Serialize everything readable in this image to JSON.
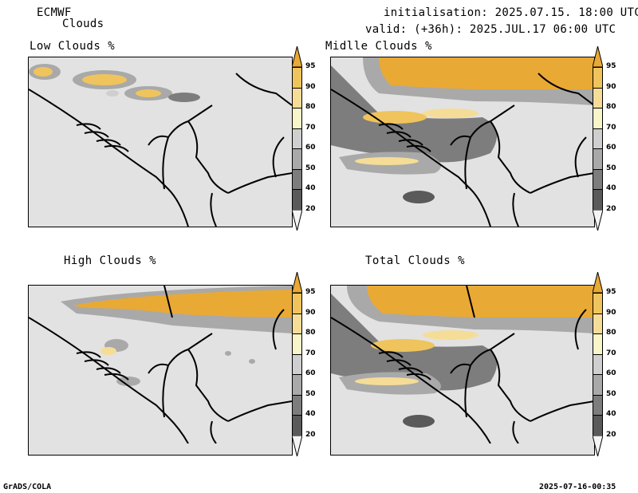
{
  "header": {
    "model": "ECMWF",
    "field": "Clouds",
    "init": "initialisation: 2025.07.15. 18:00 UTC",
    "valid": "valid: (+36h): 2025.JUL.17 06:00 UTC"
  },
  "panels": {
    "low": "Low Clouds %",
    "middle": "Midlle Clouds %",
    "high": "High Clouds %",
    "total": "Total Clouds %"
  },
  "colorbar": {
    "labels": [
      "95",
      "90",
      "80",
      "70",
      "60",
      "50",
      "40",
      "20"
    ],
    "colors": [
      "#e9a935",
      "#f0c45c",
      "#f5dd97",
      "#f8f5c9",
      "#cfcfcf",
      "#a9a9a9",
      "#7d7d7d",
      "#5a5a5a",
      "#f4f4f4"
    ]
  },
  "footer": {
    "left": "GrADS/COLA",
    "right": "2025-07-16-00:35"
  }
}
